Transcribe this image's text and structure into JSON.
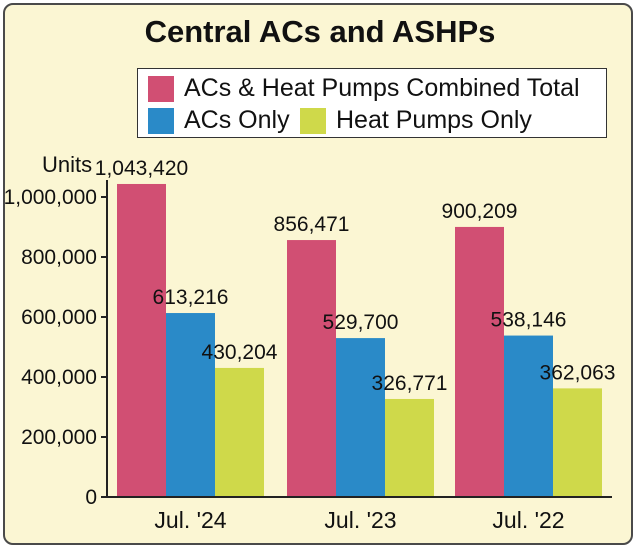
{
  "chart_data": {
    "type": "bar",
    "title": "Central ACs and ASHPs",
    "ylabel": "Units",
    "xlabel": "",
    "categories": [
      "Jul. '24",
      "Jul. '23",
      "Jul. '22"
    ],
    "series": [
      {
        "name": "ACs & Heat Pumps Combined Total",
        "values": [
          1043420,
          856471,
          900209
        ],
        "labels": [
          "1,043,420",
          "856,471",
          "900,209"
        ],
        "color": "#d14f73"
      },
      {
        "name": "ACs Only",
        "values": [
          613216,
          529700,
          538146
        ],
        "labels": [
          "613,216",
          "529,700",
          "538,146"
        ],
        "color": "#2a8ac8"
      },
      {
        "name": "Heat Pumps Only",
        "values": [
          430204,
          326771,
          362063
        ],
        "labels": [
          "430,204",
          "326,771",
          "362,063"
        ],
        "color": "#cfd94a"
      }
    ],
    "ylim": [
      0,
      1000000
    ],
    "yticks": [
      0,
      200000,
      400000,
      600000,
      800000,
      1000000
    ],
    "ytick_labels": [
      "0",
      "200,000",
      "400,000",
      "600,000",
      "800,000",
      "1,000,000"
    ],
    "grid": false,
    "legend": "top"
  }
}
